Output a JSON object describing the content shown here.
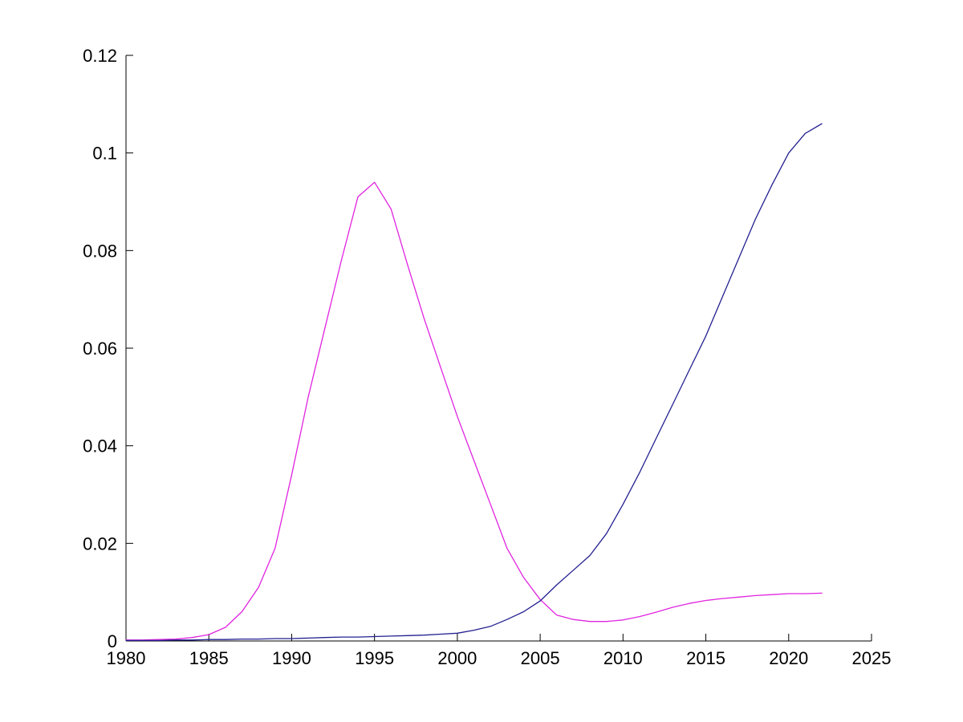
{
  "figure": {
    "background": "#ffffff",
    "axis_color": "#000000"
  },
  "chart_data": {
    "type": "line",
    "title": "",
    "xlabel": "",
    "ylabel": "",
    "legend": "none",
    "grid": "off",
    "xlim": [
      1980,
      2025
    ],
    "ylim": [
      0,
      0.12
    ],
    "x_ticks": [
      1980,
      1985,
      1990,
      1995,
      2000,
      2005,
      2010,
      2015,
      2020,
      2025
    ],
    "x_tick_labels": [
      "1980",
      "1985",
      "1990",
      "1995",
      "2000",
      "2005",
      "2010",
      "2015",
      "2020",
      "2025"
    ],
    "y_ticks": [
      0,
      0.02,
      0.04,
      0.06,
      0.08,
      0.1,
      0.12
    ],
    "y_tick_labels": [
      "0",
      "0.02",
      "0.04",
      "0.06",
      "0.08",
      "0.1",
      "0.12"
    ],
    "x": [
      1980,
      1981,
      1982,
      1983,
      1984,
      1985,
      1986,
      1987,
      1988,
      1989,
      1990,
      1991,
      1992,
      1993,
      1994,
      1995,
      1996,
      1997,
      1998,
      1999,
      2000,
      2001,
      2002,
      2003,
      2004,
      2005,
      2006,
      2007,
      2008,
      2009,
      2010,
      2011,
      2012,
      2013,
      2014,
      2015,
      2016,
      2017,
      2018,
      2019,
      2020,
      2021,
      2022
    ],
    "series": [
      {
        "name": "magenta-curve",
        "color": "#E024E0",
        "values": [
          0.0002,
          0.0002,
          0.0003,
          0.0004,
          0.0007,
          0.0013,
          0.0028,
          0.006,
          0.011,
          0.019,
          0.034,
          0.05,
          0.064,
          0.078,
          0.091,
          0.094,
          0.0885,
          0.077,
          0.066,
          0.056,
          0.046,
          0.037,
          0.028,
          0.019,
          0.013,
          0.0085,
          0.0053,
          0.0044,
          0.004,
          0.004,
          0.0043,
          0.005,
          0.0059,
          0.0069,
          0.0077,
          0.0083,
          0.0087,
          0.009,
          0.0093,
          0.0095,
          0.0097,
          0.0097,
          0.0098
        ]
      },
      {
        "name": "blue-curve",
        "color": "#232090",
        "values": [
          0.0001,
          0.0001,
          0.0001,
          0.0002,
          0.0002,
          0.0003,
          0.0003,
          0.0004,
          0.0004,
          0.0005,
          0.0005,
          0.0006,
          0.0007,
          0.0008,
          0.0008,
          0.0009,
          0.001,
          0.0011,
          0.0012,
          0.0014,
          0.0016,
          0.0022,
          0.003,
          0.0044,
          0.006,
          0.0082,
          0.0115,
          0.0145,
          0.0175,
          0.022,
          0.028,
          0.0345,
          0.0415,
          0.0485,
          0.0555,
          0.0625,
          0.0705,
          0.0785,
          0.0865,
          0.0935,
          0.1,
          0.104,
          0.106
        ]
      }
    ]
  }
}
